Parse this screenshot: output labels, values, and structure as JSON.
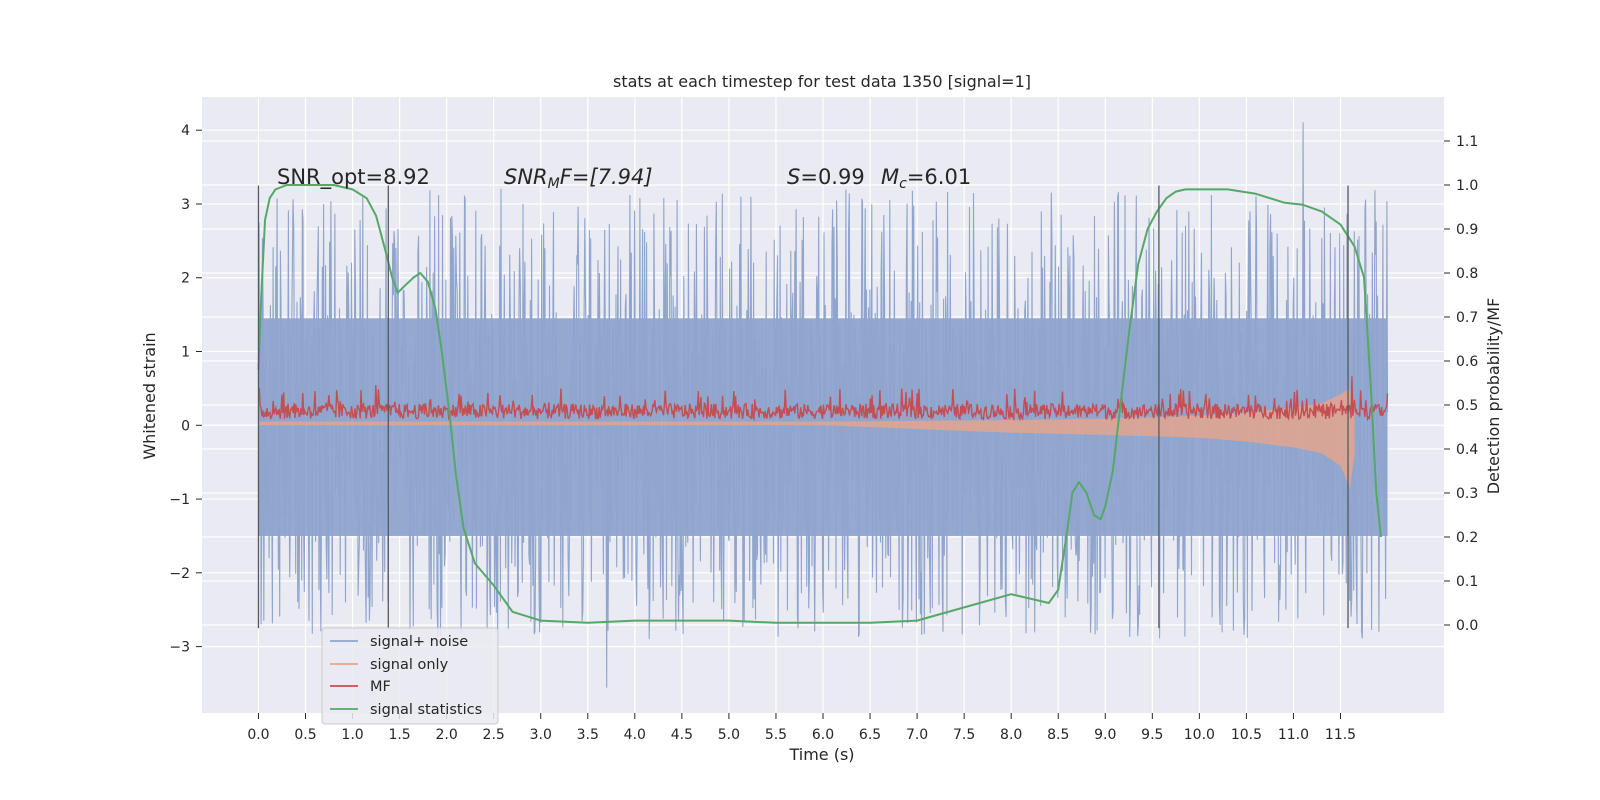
{
  "chart_data": {
    "type": "line",
    "title": "stats at each timestep for test data 1350 [signal=1]",
    "xlabel": "Time (s)",
    "ylabel_left": "Whitened strain",
    "ylabel_right": "Detection probability/MF",
    "xlim": [
      -0.6,
      12.6
    ],
    "ylim_left": [
      -3.9,
      4.45
    ],
    "ylim_right": [
      -0.2,
      1.2
    ],
    "x_ticks": [
      "0.0",
      "0.5",
      "1.0",
      "1.5",
      "2.0",
      "2.5",
      "3.0",
      "3.5",
      "4.0",
      "4.5",
      "5.0",
      "5.5",
      "6.0",
      "6.5",
      "7.0",
      "7.5",
      "8.0",
      "8.5",
      "9.0",
      "9.5",
      "10.0",
      "10.5",
      "11.0",
      "11.5"
    ],
    "y_ticks_left": [
      "4",
      "3",
      "2",
      "1",
      "0",
      "−1",
      "−2",
      "−3"
    ],
    "y_ticks_right": [
      "1.1",
      "1.0",
      "0.9",
      "0.8",
      "0.7",
      "0.6",
      "0.5",
      "0.4",
      "0.3",
      "0.2",
      "0.1",
      "0.0"
    ],
    "grid": true,
    "legend_position": "lower-left",
    "annotations": {
      "snr_opt": "SNR_opt=8.92",
      "snr_mf_prefix": "SNR",
      "snr_mf_sub": "M",
      "snr_mf_suffix": "F=[7.94]",
      "s_prefix": "S",
      "s_value": "=0.99",
      "mc_prefix": "M",
      "mc_sub": "c",
      "mc_value": "=6.01"
    },
    "vertical_markers": [
      {
        "x": 0.0,
        "y_range": [
          -2.75,
          3.25
        ]
      },
      {
        "x": 1.38,
        "y_range": [
          -2.75,
          3.25
        ]
      },
      {
        "x": 9.57,
        "y_range": [
          -2.75,
          3.25
        ]
      },
      {
        "x": 11.58,
        "y_range": [
          -2.75,
          3.25
        ]
      }
    ],
    "series": [
      {
        "name": "signal+ noise",
        "axis": "left",
        "color": "#8fa5cd",
        "x_range": [
          0.0,
          12.0
        ],
        "envelope_dense": [
          -1.5,
          1.45
        ],
        "extremes_typical": [
          -2.9,
          3.2
        ],
        "max_peak": {
          "x": 11.1,
          "y": 4.1
        },
        "min_peak": {
          "x": 3.7,
          "y": -3.55
        }
      },
      {
        "name": "signal only",
        "axis": "left",
        "color": "#e8a58a",
        "x": [
          0,
          6,
          7,
          8,
          9,
          10,
          10.5,
          11,
          11.3,
          11.5,
          11.6,
          11.65
        ],
        "upper": [
          0.05,
          0.05,
          0.06,
          0.07,
          0.09,
          0.13,
          0.17,
          0.24,
          0.3,
          0.42,
          0.5,
          0.15
        ],
        "lower": [
          0.0,
          0.0,
          -0.05,
          -0.1,
          -0.13,
          -0.17,
          -0.22,
          -0.3,
          -0.38,
          -0.55,
          -0.85,
          -0.4
        ]
      },
      {
        "name": "MF",
        "axis": "right",
        "color": "#c44e52",
        "x_range": [
          0.0,
          12.0
        ],
        "base": 0.468,
        "amplitude": [
          0.0,
          0.1
        ],
        "peaks": [
          [
            11.62,
            0.565
          ],
          [
            1.25,
            0.545
          ],
          [
            5.6,
            0.535
          ],
          [
            6.95,
            0.535
          ]
        ]
      },
      {
        "name": "signal statistics",
        "axis": "right",
        "color": "#55a868",
        "x": [
          0,
          0.03,
          0.07,
          0.12,
          0.18,
          0.3,
          0.5,
          0.8,
          1.0,
          1.15,
          1.25,
          1.35,
          1.42,
          1.48,
          1.55,
          1.6,
          1.65,
          1.72,
          1.8,
          1.88,
          1.95,
          2.03,
          2.1,
          2.18,
          2.3,
          2.5,
          2.7,
          3.0,
          3.5,
          4.0,
          4.5,
          5.0,
          5.5,
          6.0,
          6.5,
          7.0,
          7.5,
          8.0,
          8.4,
          8.5,
          8.6,
          8.65,
          8.72,
          8.8,
          8.88,
          8.95,
          9.0,
          9.08,
          9.15,
          9.25,
          9.35,
          9.45,
          9.55,
          9.65,
          9.75,
          9.85,
          10.0,
          10.3,
          10.6,
          10.9,
          11.1,
          11.3,
          11.5,
          11.65,
          11.75,
          11.82,
          11.88,
          11.93
        ],
        "y": [
          0.58,
          0.75,
          0.92,
          0.97,
          0.99,
          1.0,
          1.0,
          1.0,
          0.99,
          0.97,
          0.93,
          0.85,
          0.79,
          0.755,
          0.77,
          0.78,
          0.79,
          0.8,
          0.78,
          0.72,
          0.62,
          0.48,
          0.34,
          0.22,
          0.14,
          0.09,
          0.03,
          0.01,
          0.005,
          0.01,
          0.01,
          0.01,
          0.005,
          0.005,
          0.005,
          0.01,
          0.04,
          0.07,
          0.05,
          0.08,
          0.22,
          0.3,
          0.325,
          0.3,
          0.25,
          0.24,
          0.27,
          0.35,
          0.48,
          0.66,
          0.82,
          0.9,
          0.94,
          0.97,
          0.985,
          0.99,
          0.99,
          0.99,
          0.98,
          0.96,
          0.955,
          0.94,
          0.91,
          0.86,
          0.79,
          0.55,
          0.3,
          0.2
        ]
      }
    ]
  }
}
